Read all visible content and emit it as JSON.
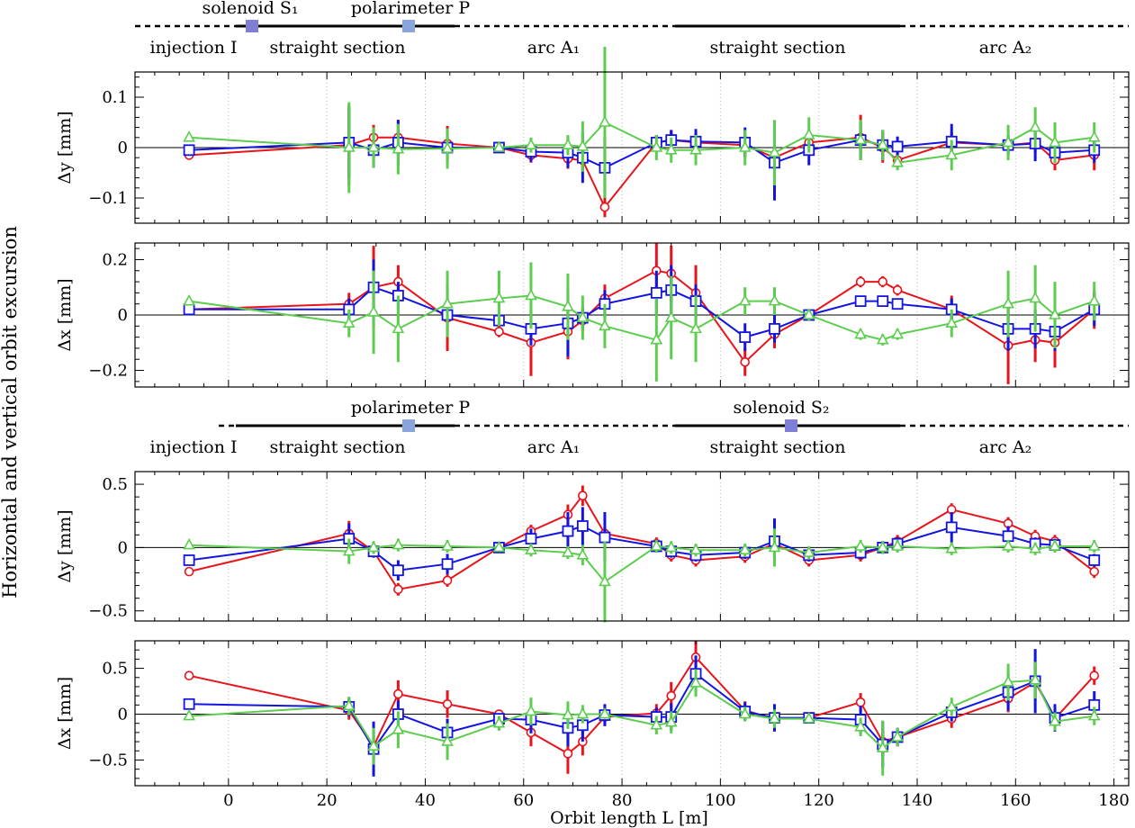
{
  "figure": {
    "ylabel": "Horizontal and vertical orbit excursion",
    "xlabel": "Orbit length L [m]",
    "xticks": [
      0,
      20,
      40,
      60,
      80,
      100,
      120,
      140,
      160,
      180
    ],
    "xlim": [
      -19,
      183
    ]
  },
  "lattice": [
    {
      "labels": {
        "injection": "injection I",
        "straight1": "straight section",
        "arc1": "arc A₁",
        "straight2": "straight section",
        "arc2": "arc A₂",
        "marker1": "solenoid S₁",
        "marker2": "polarimeter P"
      }
    },
    {
      "labels": {
        "injection": "injection I",
        "straight1": "straight section",
        "arc1": "arc A₁",
        "straight2": "straight section",
        "arc2": "arc A₂",
        "marker1": "polarimeter P",
        "marker2": "solenoid S₂"
      }
    }
  ],
  "colors": {
    "red": "#e8141c",
    "blue": "#1414e0",
    "green": "#5ccd4e",
    "marker": "#7f7fd6",
    "marker_light": "#8aa5dc"
  },
  "chart_data": [
    {
      "type": "line",
      "ylabel": "Δy [mm]",
      "ylim": [
        -0.15,
        0.15
      ],
      "yticks": [
        -0.1,
        0,
        0.1
      ],
      "yticklabels": [
        "−0.1",
        "0",
        "0.1"
      ],
      "series": [
        {
          "color": "red",
          "marker": "circle",
          "x": [
            -8,
            24.5,
            29.5,
            34.5,
            44.5,
            55,
            61.5,
            69,
            72,
            76.5,
            87,
            90,
            95,
            105,
            111,
            118,
            128.5,
            133,
            136,
            147,
            158.5,
            164,
            168,
            176
          ],
          "y": [
            -0.015,
            0.005,
            0.02,
            0.02,
            0.008,
            0.0,
            -0.015,
            -0.022,
            -0.025,
            -0.118,
            0.01,
            0.015,
            0.01,
            0.005,
            -0.02,
            0.01,
            0.02,
            0.0,
            -0.025,
            0.01,
            0.005,
            0.01,
            -0.025,
            -0.015
          ],
          "err": [
            0.005,
            0.08,
            0.025,
            0.035,
            0.035,
            0.005,
            0.015,
            0.02,
            0.02,
            0.02,
            0.015,
            0.02,
            0.02,
            0.02,
            0.03,
            0.02,
            0.045,
            0.03,
            0.015,
            0.02,
            0.02,
            0.02,
            0.02,
            0.03
          ]
        },
        {
          "color": "blue",
          "marker": "square",
          "x": [
            -8,
            24.5,
            29.5,
            34.5,
            44.5,
            55,
            61.5,
            69,
            72,
            76.5,
            87,
            90,
            95,
            105,
            111,
            118,
            128.5,
            133,
            136,
            147,
            158.5,
            164,
            168,
            176
          ],
          "y": [
            -0.005,
            0.01,
            -0.005,
            0.01,
            0.0,
            0.0,
            -0.008,
            -0.01,
            -0.02,
            -0.04,
            0.01,
            0.015,
            0.012,
            0.01,
            -0.03,
            -0.005,
            0.015,
            0.005,
            0.002,
            0.012,
            0.005,
            0.008,
            -0.01,
            -0.005
          ],
          "err": [
            0.005,
            0.07,
            0.035,
            0.045,
            0.03,
            0.005,
            0.02,
            0.03,
            0.05,
            0.06,
            0.015,
            0.02,
            0.025,
            0.03,
            0.075,
            0.03,
            0.035,
            0.03,
            0.02,
            0.035,
            0.02,
            0.035,
            0.02,
            0.025
          ]
        },
        {
          "color": "green",
          "marker": "triangle",
          "x": [
            -8,
            24.5,
            29.5,
            34.5,
            44.5,
            55,
            61.5,
            69,
            72,
            76.5,
            87,
            90,
            95,
            105,
            111,
            118,
            128.5,
            133,
            136,
            147,
            158.5,
            164,
            168,
            176
          ],
          "y": [
            0.02,
            0.0,
            0.0,
            -0.003,
            -0.002,
            0.0,
            0.005,
            0.005,
            0.002,
            0.05,
            0.0,
            -0.005,
            -0.005,
            0.0,
            -0.01,
            0.025,
            0.015,
            0.005,
            -0.03,
            -0.015,
            0.01,
            0.04,
            0.01,
            0.02
          ],
          "err": [
            0.005,
            0.09,
            0.04,
            0.05,
            0.04,
            0.005,
            0.015,
            0.02,
            0.05,
            0.15,
            0.025,
            0.025,
            0.03,
            0.035,
            0.065,
            0.035,
            0.04,
            0.03,
            0.015,
            0.03,
            0.035,
            0.04,
            0.04,
            0.03
          ]
        }
      ]
    },
    {
      "type": "line",
      "ylabel": "Δx [mm]",
      "ylim": [
        -0.26,
        0.26
      ],
      "yticks": [
        -0.2,
        0,
        0.2
      ],
      "yticklabels": [
        "−0.2",
        "0",
        "0.2"
      ],
      "series": [
        {
          "color": "red",
          "marker": "circle",
          "x": [
            -8,
            24.5,
            29.5,
            34.5,
            44.5,
            55,
            61.5,
            69,
            72,
            76.5,
            87,
            90,
            95,
            105,
            111,
            118,
            128.5,
            133,
            136,
            147,
            158.5,
            164,
            168,
            176
          ],
          "y": [
            0.02,
            0.04,
            0.1,
            0.12,
            -0.01,
            -0.06,
            -0.1,
            -0.06,
            -0.02,
            0.06,
            0.16,
            0.15,
            0.08,
            -0.17,
            -0.07,
            0.0,
            0.12,
            0.12,
            0.09,
            0.02,
            -0.11,
            -0.09,
            -0.1,
            0.02
          ],
          "err": [
            0.005,
            0.04,
            0.15,
            0.06,
            0.12,
            0.02,
            0.12,
            0.1,
            0.04,
            0.05,
            0.1,
            0.1,
            0.1,
            0.05,
            0.05,
            0.02,
            0.02,
            0.02,
            0.02,
            0.05,
            0.14,
            0.08,
            0.09,
            0.07
          ]
        },
        {
          "color": "blue",
          "marker": "square",
          "x": [
            -8,
            24.5,
            29.5,
            34.5,
            44.5,
            55,
            61.5,
            69,
            72,
            76.5,
            87,
            90,
            95,
            105,
            111,
            118,
            128.5,
            133,
            136,
            147,
            158.5,
            164,
            168,
            176
          ],
          "y": [
            0.02,
            0.02,
            0.1,
            0.07,
            0.0,
            -0.02,
            -0.05,
            -0.03,
            -0.01,
            0.04,
            0.08,
            0.09,
            0.05,
            -0.08,
            -0.05,
            0.0,
            0.05,
            0.05,
            0.04,
            0.02,
            -0.05,
            -0.05,
            -0.06,
            0.02
          ],
          "err": [
            0.005,
            0.04,
            0.1,
            0.05,
            0.06,
            0.02,
            0.06,
            0.12,
            0.04,
            0.05,
            0.08,
            0.09,
            0.06,
            0.05,
            0.05,
            0.02,
            0.02,
            0.02,
            0.02,
            0.04,
            0.08,
            0.07,
            0.07,
            0.06
          ]
        },
        {
          "color": "green",
          "marker": "triangle",
          "x": [
            -8,
            24.5,
            29.5,
            34.5,
            44.5,
            55,
            61.5,
            69,
            72,
            76.5,
            87,
            90,
            95,
            105,
            111,
            118,
            128.5,
            133,
            136,
            147,
            158.5,
            164,
            168,
            176
          ],
          "y": [
            0.05,
            -0.03,
            0.01,
            -0.05,
            0.04,
            0.06,
            0.07,
            0.03,
            -0.01,
            -0.04,
            -0.09,
            -0.01,
            -0.05,
            0.05,
            0.05,
            0.0,
            -0.07,
            -0.09,
            -0.07,
            -0.03,
            0.04,
            0.06,
            0.0,
            0.05
          ],
          "err": [
            0.005,
            0.05,
            0.15,
            0.12,
            0.12,
            0.1,
            0.12,
            0.12,
            0.08,
            0.08,
            0.15,
            0.15,
            0.12,
            0.05,
            0.05,
            0.02,
            0.02,
            0.02,
            0.02,
            0.05,
            0.12,
            0.12,
            0.12,
            0.07
          ]
        }
      ]
    },
    {
      "type": "line",
      "ylabel": "Δy [mm]",
      "ylim": [
        -0.58,
        0.6
      ],
      "yticks": [
        -0.5,
        0,
        0.5
      ],
      "yticklabels": [
        "−0.5",
        "0",
        "0.5"
      ],
      "series": [
        {
          "color": "red",
          "marker": "circle",
          "x": [
            -8,
            24.5,
            29.5,
            34.5,
            44.5,
            55,
            61.5,
            69,
            72,
            76.5,
            87,
            90,
            95,
            105,
            111,
            118,
            128.5,
            133,
            136,
            147,
            158.5,
            164,
            168,
            176
          ],
          "y": [
            -0.19,
            0.11,
            -0.03,
            -0.33,
            -0.26,
            0.0,
            0.13,
            0.26,
            0.41,
            0.11,
            0.03,
            -0.06,
            -0.1,
            -0.07,
            0.03,
            -0.1,
            -0.06,
            0.0,
            0.05,
            0.3,
            0.19,
            0.09,
            0.05,
            -0.19
          ],
          "err": [
            0.005,
            0.1,
            0.03,
            0.05,
            0.05,
            0.02,
            0.05,
            0.08,
            0.08,
            0.05,
            0.05,
            0.05,
            0.05,
            0.05,
            0.15,
            0.05,
            0.05,
            0.05,
            0.05,
            0.05,
            0.05,
            0.05,
            0.05,
            0.05
          ]
        },
        {
          "color": "blue",
          "marker": "square",
          "x": [
            -8,
            24.5,
            29.5,
            34.5,
            44.5,
            55,
            61.5,
            69,
            72,
            76.5,
            87,
            90,
            95,
            105,
            111,
            118,
            128.5,
            133,
            136,
            147,
            158.5,
            164,
            168,
            176
          ],
          "y": [
            -0.1,
            0.07,
            -0.03,
            -0.18,
            -0.13,
            0.0,
            0.07,
            0.13,
            0.17,
            0.08,
            0.01,
            -0.03,
            -0.06,
            -0.04,
            0.05,
            -0.06,
            -0.04,
            0.0,
            0.03,
            0.16,
            0.09,
            0.03,
            0.02,
            -0.1
          ],
          "err": [
            0.005,
            0.12,
            0.05,
            0.08,
            0.08,
            0.03,
            0.08,
            0.15,
            0.15,
            0.2,
            0.05,
            0.05,
            0.05,
            0.05,
            0.18,
            0.05,
            0.05,
            0.05,
            0.05,
            0.12,
            0.08,
            0.05,
            0.05,
            0.05
          ]
        },
        {
          "color": "green",
          "marker": "triangle",
          "x": [
            -8,
            24.5,
            29.5,
            34.5,
            44.5,
            55,
            61.5,
            69,
            72,
            76.5,
            87,
            90,
            95,
            105,
            111,
            118,
            128.5,
            133,
            136,
            147,
            158.5,
            164,
            168,
            176
          ],
          "y": [
            0.02,
            -0.03,
            0.0,
            0.02,
            0.01,
            0.0,
            -0.02,
            -0.04,
            -0.06,
            -0.27,
            0.01,
            0.0,
            -0.02,
            -0.02,
            0.0,
            -0.04,
            0.01,
            0.0,
            0.01,
            -0.01,
            0.01,
            -0.01,
            0.01,
            0.01
          ],
          "err": [
            0.005,
            0.1,
            0.05,
            0.05,
            0.05,
            0.03,
            0.05,
            0.05,
            0.08,
            0.32,
            0.05,
            0.05,
            0.05,
            0.05,
            0.15,
            0.05,
            0.05,
            0.05,
            0.05,
            0.05,
            0.05,
            0.05,
            0.05,
            0.05
          ]
        }
      ]
    },
    {
      "type": "line",
      "ylabel": "Δx [mm]",
      "ylim": [
        -0.78,
        0.8
      ],
      "yticks": [
        -0.5,
        0,
        0.5
      ],
      "yticklabels": [
        "−0.5",
        "0",
        "0.5"
      ],
      "series": [
        {
          "color": "red",
          "marker": "circle",
          "x": [
            -8,
            24.5,
            29.5,
            34.5,
            44.5,
            55,
            61.5,
            69,
            72,
            76.5,
            87,
            90,
            95,
            105,
            111,
            118,
            128.5,
            133,
            136,
            147,
            158.5,
            164,
            168,
            176
          ],
          "y": [
            0.42,
            0.04,
            -0.35,
            0.22,
            0.11,
            0.0,
            -0.2,
            -0.43,
            -0.3,
            -0.03,
            0.01,
            0.2,
            0.62,
            0.04,
            -0.05,
            -0.04,
            0.13,
            -0.3,
            -0.25,
            -0.05,
            0.17,
            0.35,
            -0.05,
            0.42
          ],
          "err": [
            0.005,
            0.1,
            0.15,
            0.15,
            0.15,
            0.05,
            0.15,
            0.22,
            0.15,
            0.1,
            0.1,
            0.15,
            0.18,
            0.1,
            0.1,
            0.05,
            0.1,
            0.15,
            0.1,
            0.1,
            0.15,
            0.2,
            0.1,
            0.1
          ]
        },
        {
          "color": "blue",
          "marker": "square",
          "x": [
            -8,
            24.5,
            29.5,
            34.5,
            44.5,
            55,
            61.5,
            69,
            72,
            76.5,
            87,
            90,
            95,
            105,
            111,
            118,
            128.5,
            133,
            136,
            147,
            158.5,
            164,
            168,
            176
          ],
          "y": [
            0.11,
            0.08,
            -0.38,
            0.0,
            -0.2,
            -0.05,
            -0.06,
            -0.15,
            -0.12,
            -0.01,
            -0.03,
            -0.03,
            0.44,
            0.03,
            -0.04,
            -0.04,
            -0.06,
            -0.33,
            -0.25,
            0.02,
            0.24,
            0.36,
            -0.04,
            0.1
          ],
          "err": [
            0.005,
            0.1,
            0.3,
            0.15,
            0.15,
            0.05,
            0.15,
            0.2,
            0.18,
            0.12,
            0.1,
            0.15,
            0.2,
            0.1,
            0.15,
            0.05,
            0.15,
            0.25,
            0.1,
            0.1,
            0.2,
            0.35,
            0.15,
            0.15
          ]
        },
        {
          "color": "green",
          "marker": "triangle",
          "x": [
            -8,
            24.5,
            29.5,
            34.5,
            44.5,
            55,
            61.5,
            69,
            72,
            76.5,
            87,
            90,
            95,
            105,
            111,
            118,
            128.5,
            133,
            136,
            147,
            158.5,
            164,
            168,
            176
          ],
          "y": [
            -0.02,
            0.09,
            -0.35,
            -0.17,
            -0.3,
            -0.1,
            0.03,
            -0.01,
            0.0,
            0.0,
            -0.12,
            -0.09,
            0.34,
            0.0,
            -0.05,
            -0.05,
            -0.14,
            -0.37,
            -0.25,
            0.08,
            0.35,
            0.37,
            -0.08,
            -0.02
          ],
          "err": [
            0.005,
            0.1,
            0.2,
            0.2,
            0.2,
            0.08,
            0.15,
            0.15,
            0.1,
            0.05,
            0.1,
            0.12,
            0.15,
            0.08,
            0.1,
            0.05,
            0.1,
            0.3,
            0.1,
            0.1,
            0.2,
            0.2,
            0.1,
            0.1
          ]
        }
      ]
    }
  ]
}
